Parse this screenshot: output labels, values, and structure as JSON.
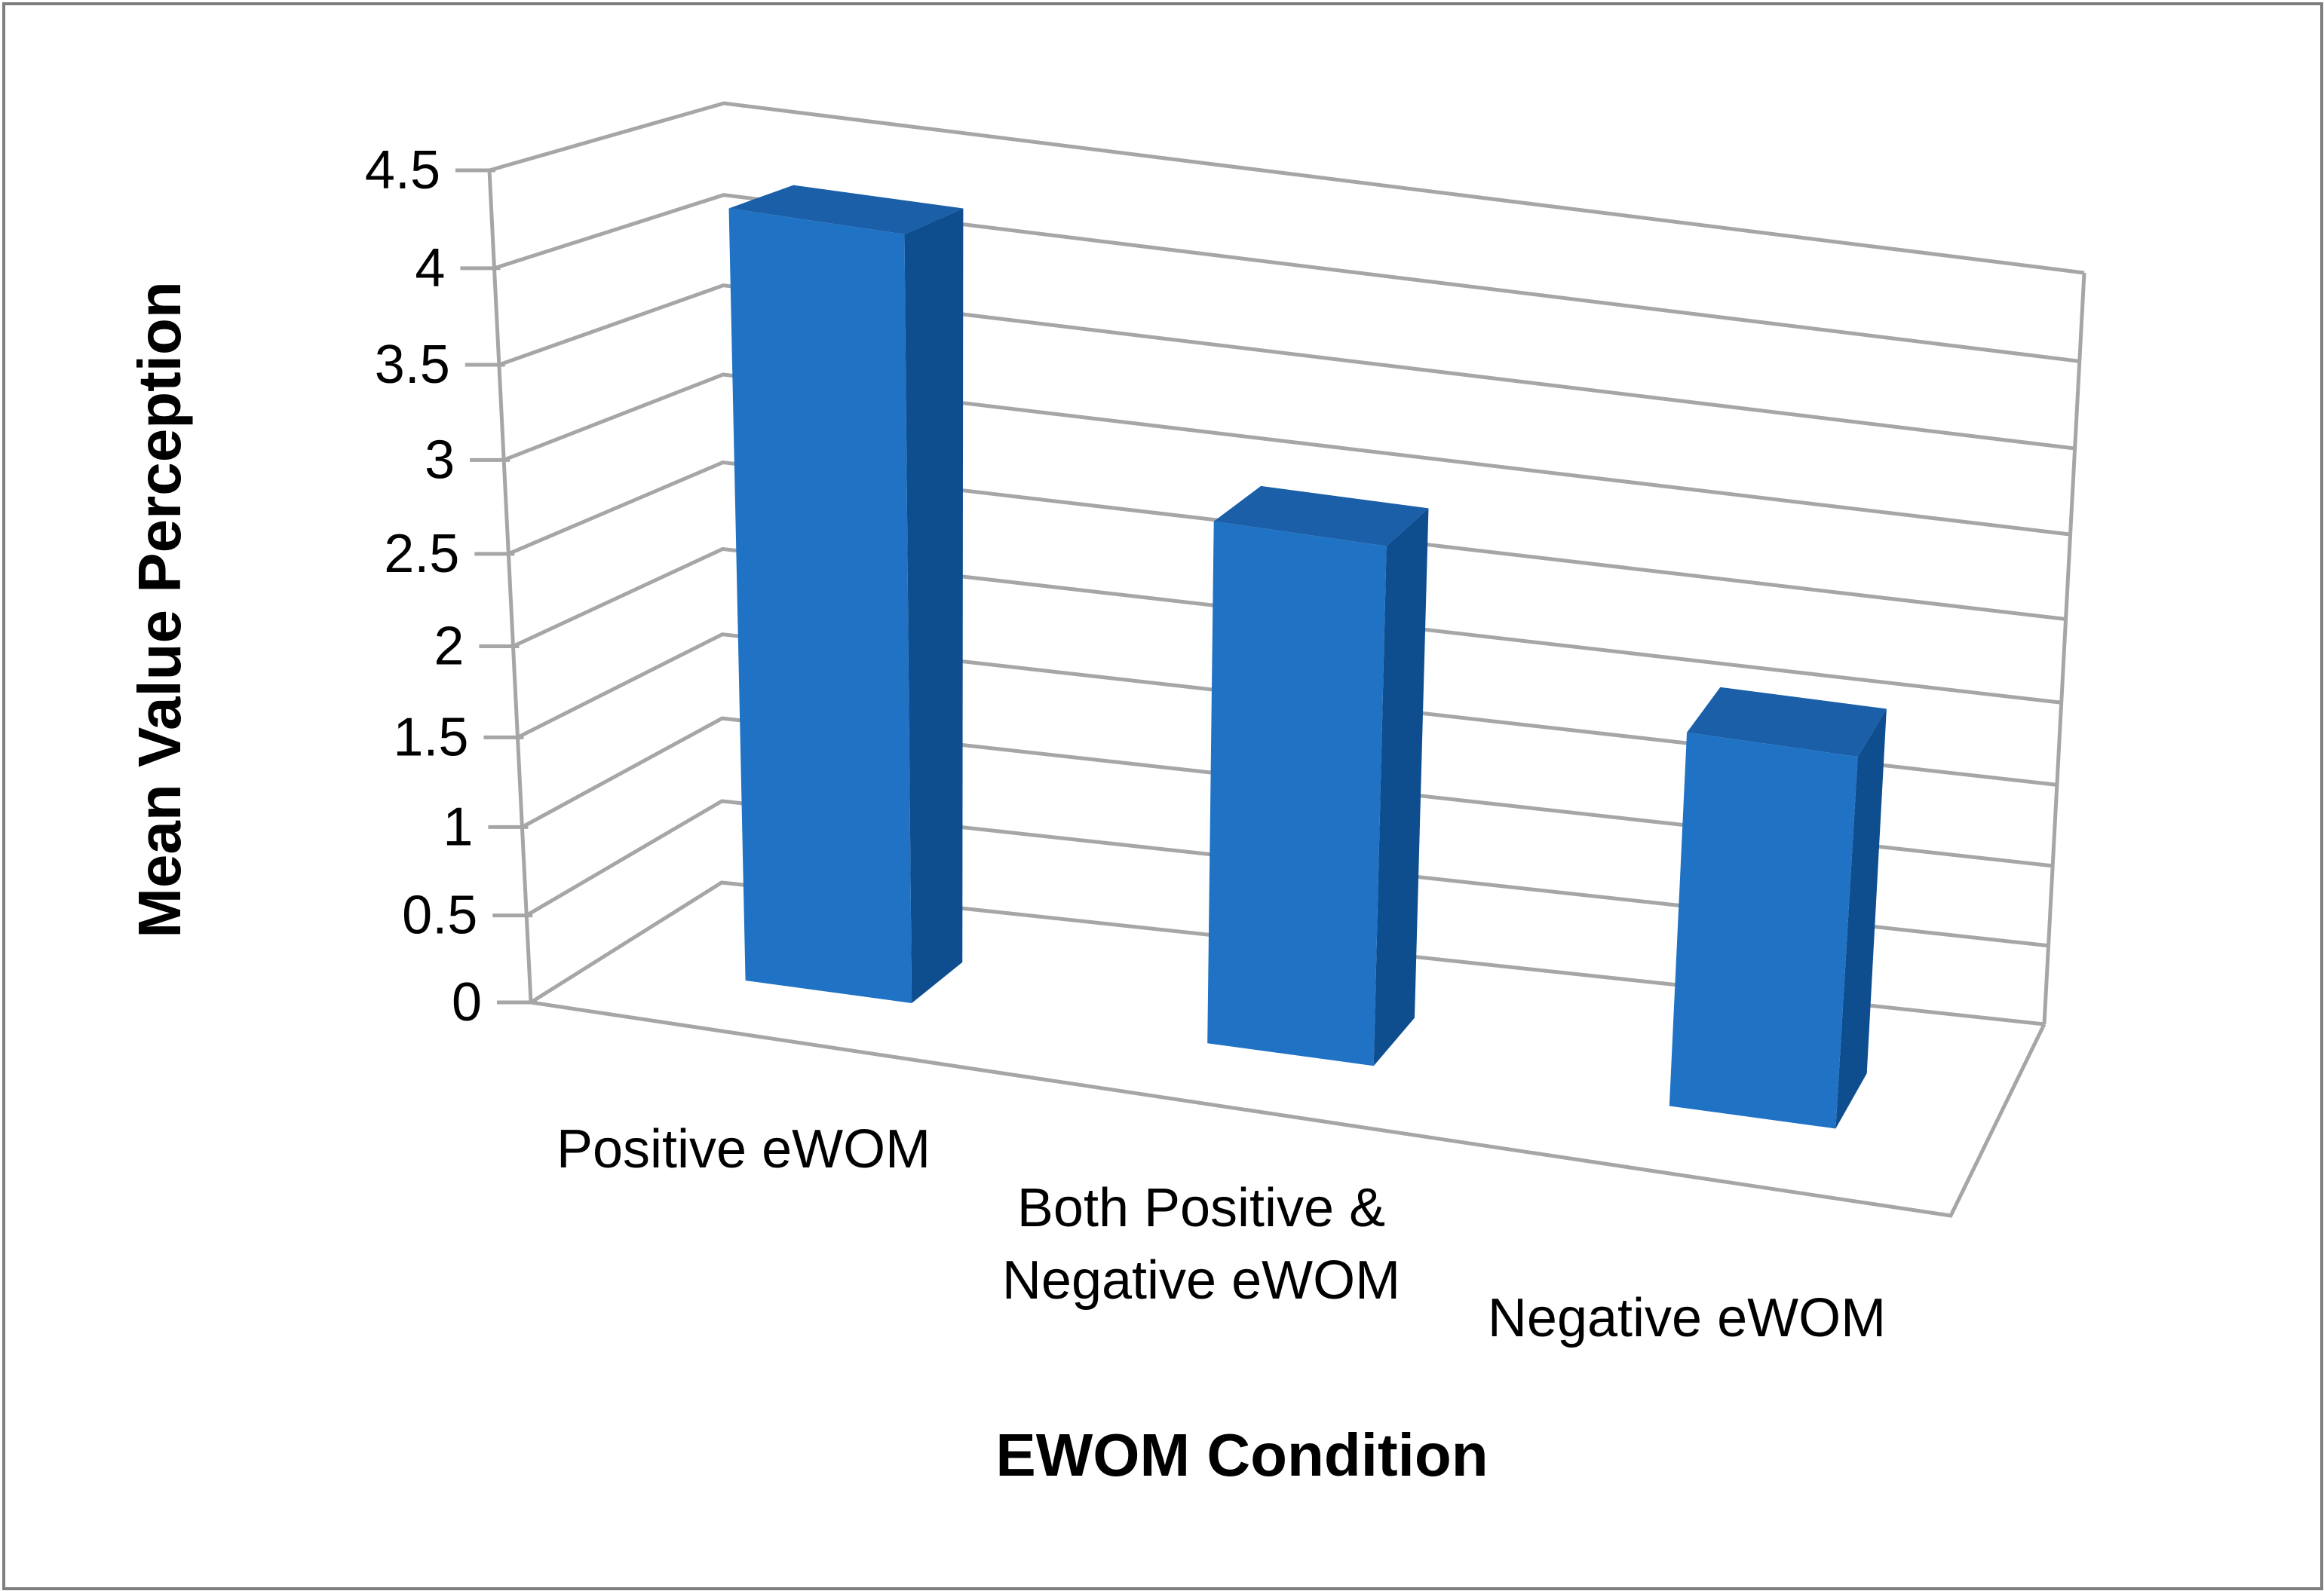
{
  "chart_data": {
    "type": "bar",
    "projection": "3d-column",
    "categories": [
      "Positive eWOM",
      "Both Positive & Negative eWOM",
      "Negative eWOM"
    ],
    "values": [
      4.3,
      3.0,
      2.2
    ],
    "xlabel": "EWOM Condition",
    "ylabel": "Mean Value Perception",
    "ylim": [
      0,
      4.5
    ],
    "ytick_step": 0.5,
    "yticks": [
      "0",
      "0.5",
      "1",
      "1.5",
      "2",
      "2.5",
      "3",
      "3.5",
      "4",
      "4.5"
    ],
    "grid": true,
    "legend": false,
    "colors": {
      "bar_front": "#1F72C4",
      "bar_side": "#0E4E8F",
      "bar_top": "#1A5FA8",
      "grid_line": "#A6A6A6",
      "text": "#000000",
      "border": "#7F7F7F",
      "background": "#FFFFFF"
    }
  }
}
